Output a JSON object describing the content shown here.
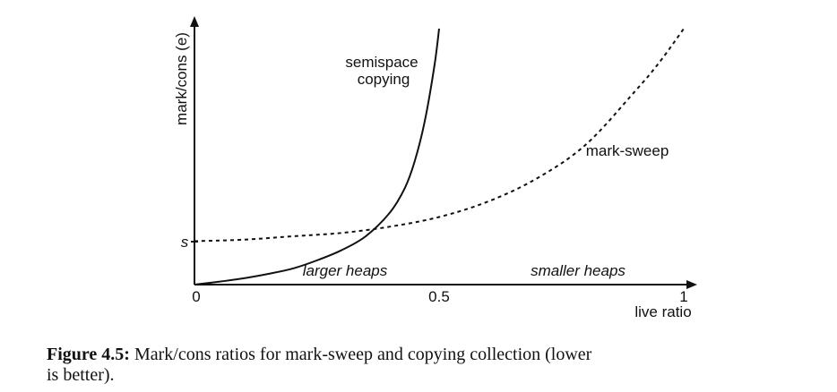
{
  "chart_data": {
    "type": "line",
    "xlabel": "live ratio",
    "ylabel": "mark/cons (e)",
    "xlim": [
      0,
      1
    ],
    "x_ticks": [
      "0",
      "0.5",
      "1"
    ],
    "y_tick_label": "s",
    "grid": false,
    "legend": "none",
    "series": [
      {
        "name": "semispace copying",
        "style": "solid",
        "points": [
          {
            "x": 0.0,
            "y": 0.0
          },
          {
            "x": 0.05,
            "y": 0.06
          },
          {
            "x": 0.1,
            "y": 0.13
          },
          {
            "x": 0.15,
            "y": 0.22
          },
          {
            "x": 0.2,
            "y": 0.33
          },
          {
            "x": 0.25,
            "y": 0.5
          },
          {
            "x": 0.3,
            "y": 0.71
          },
          {
            "x": 0.35,
            "y": 1.0
          },
          {
            "x": 0.4,
            "y": 1.5
          },
          {
            "x": 0.43,
            "y": 2.0
          },
          {
            "x": 0.45,
            "y": 2.55
          },
          {
            "x": 0.47,
            "y": 3.35
          },
          {
            "x": 0.49,
            "y": 4.5
          },
          {
            "x": 0.5,
            "y": 5.3
          }
        ]
      },
      {
        "name": "mark-sweep",
        "style": "dashed",
        "points": [
          {
            "x": 0.0,
            "y": 0.9
          },
          {
            "x": 0.1,
            "y": 0.93
          },
          {
            "x": 0.2,
            "y": 1.0
          },
          {
            "x": 0.3,
            "y": 1.07
          },
          {
            "x": 0.4,
            "y": 1.2
          },
          {
            "x": 0.5,
            "y": 1.4
          },
          {
            "x": 0.6,
            "y": 1.72
          },
          {
            "x": 0.7,
            "y": 2.2
          },
          {
            "x": 0.8,
            "y": 2.9
          },
          {
            "x": 0.9,
            "y": 4.0
          },
          {
            "x": 0.95,
            "y": 4.6
          },
          {
            "x": 1.0,
            "y": 5.3
          }
        ]
      }
    ],
    "annotations": {
      "semispace_line1": "semispace",
      "semispace_line2": "copying",
      "mark_sweep": "mark-sweep",
      "larger_heaps": "larger heaps",
      "smaller_heaps": "smaller heaps"
    }
  },
  "caption": {
    "label": "Figure 4.5:",
    "text_line1": " Mark/cons ratios for mark-sweep and copying collection (lower",
    "text_line2": "is better)."
  }
}
